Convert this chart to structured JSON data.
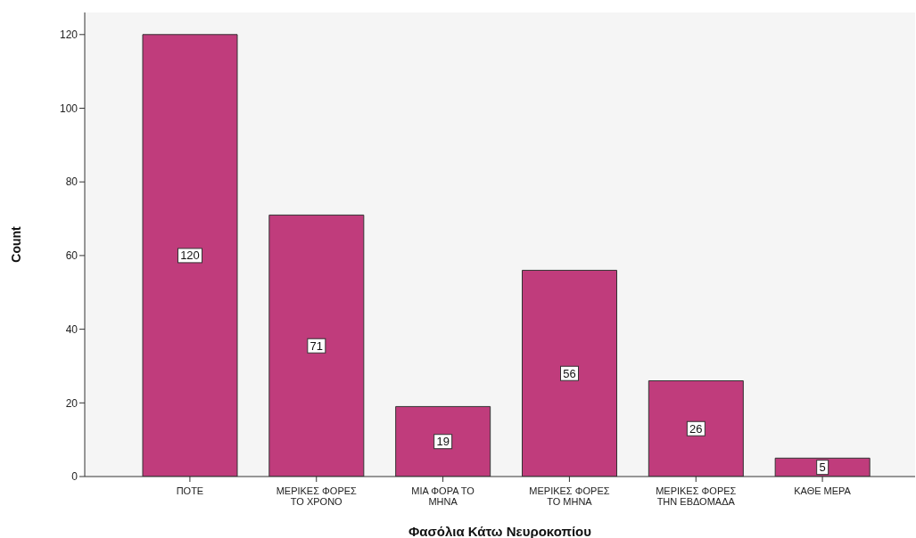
{
  "chart_data": {
    "type": "bar",
    "xlabel": "Φασόλια Κάτω Νευροκοπίου",
    "ylabel": "Count",
    "categories": [
      "ΠΟΤΕ",
      "ΜΕΡΙΚΕΣ ΦΟΡΕΣ ΤΟ ΧΡΟΝΟ",
      "ΜΙΑ ΦΟΡΑ ΤΟ ΜΗΝΑ",
      "ΜΕΡΙΚΕΣ ΦΟΡΕΣ ΤΟ ΜΗΝΑ",
      "ΜΕΡΙΚΕΣ ΦΟΡΕΣ ΤΗΝ ΕΒΔΟΜΑΔΑ",
      "ΚΑΘΕ ΜΕΡΑ"
    ],
    "values": [
      120,
      71,
      19,
      56,
      26,
      5
    ],
    "color": "#c03c7c",
    "ylim": [
      0,
      126
    ],
    "yticks": [
      0,
      20,
      40,
      60,
      80,
      100,
      120
    ],
    "data_labels": true
  }
}
